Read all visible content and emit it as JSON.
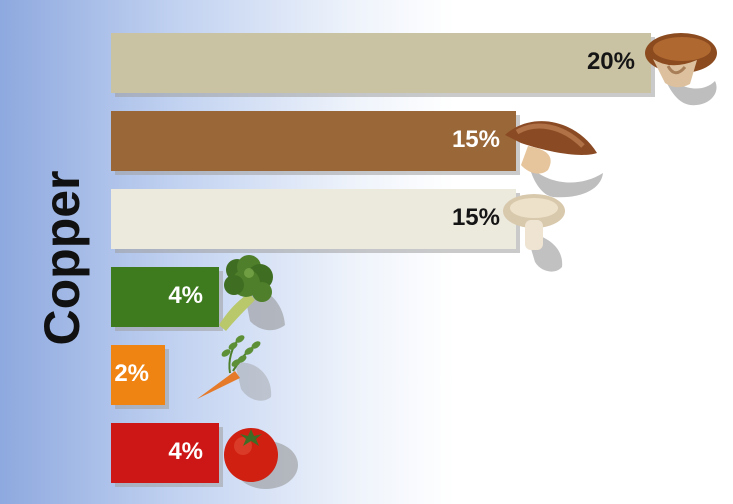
{
  "chart_data": {
    "type": "bar",
    "orientation": "horizontal",
    "title": "",
    "xlabel": "",
    "ylabel": "Copper",
    "grid": false,
    "legend": "none",
    "xlim": [
      0,
      20
    ],
    "categories": [
      "mushroom-1",
      "mushroom-2",
      "mushroom-3",
      "broccoli",
      "carrot",
      "tomato"
    ],
    "values": [
      20,
      15,
      15,
      4,
      2,
      4
    ],
    "value_labels": [
      "20%",
      "15%",
      "15%",
      "4%",
      "2%",
      "4%"
    ],
    "bar_colors": [
      "#c9c3a3",
      "#9a6738",
      "#ece9dd",
      "#3e7b1f",
      "#ef8413",
      "#cc1716"
    ],
    "label_colors": [
      "#151515",
      "#ffffff",
      "#151515",
      "#ffffff",
      "#ffffff",
      "#ffffff"
    ],
    "icons": [
      "mushroom-icon",
      "shiitake-icon",
      "white-mushroom-icon",
      "broccoli-icon",
      "carrot-icon",
      "tomato-icon"
    ]
  }
}
